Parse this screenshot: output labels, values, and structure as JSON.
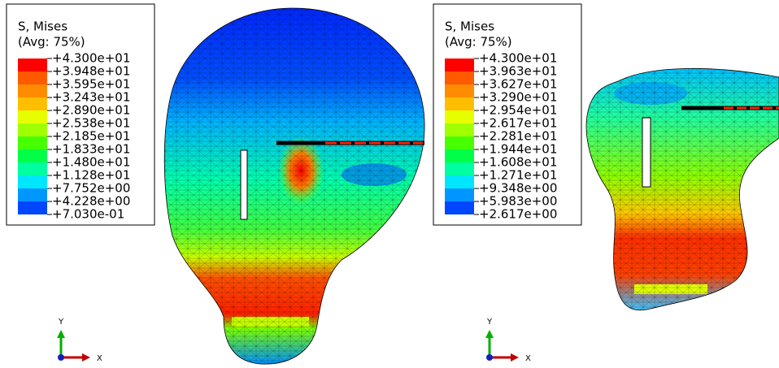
{
  "panels": [
    {
      "legend": {
        "title": "S, Mises",
        "subtitle": "(Avg: 75%)",
        "labels": [
          "+4.300e+01",
          "+3.948e+01",
          "+3.595e+01",
          "+3.243e+01",
          "+2.890e+01",
          "+2.538e+01",
          "+2.185e+01",
          "+1.833e+01",
          "+1.480e+01",
          "+1.128e+01",
          "+7.752e+00",
          "+4.228e+00",
          "+7.030e-01"
        ]
      },
      "triad": {
        "y": "Y",
        "x": "X"
      }
    },
    {
      "legend": {
        "title": "S, Mises",
        "subtitle": "(Avg: 75%)",
        "labels": [
          "+4.300e+01",
          "+3.963e+01",
          "+3.627e+01",
          "+3.290e+01",
          "+2.954e+01",
          "+2.617e+01",
          "+2.281e+01",
          "+1.944e+01",
          "+1.608e+01",
          "+1.271e+01",
          "+9.348e+00",
          "+5.983e+00",
          "+2.617e+00"
        ]
      },
      "triad": {
        "y": "Y",
        "x": "X"
      }
    }
  ]
}
